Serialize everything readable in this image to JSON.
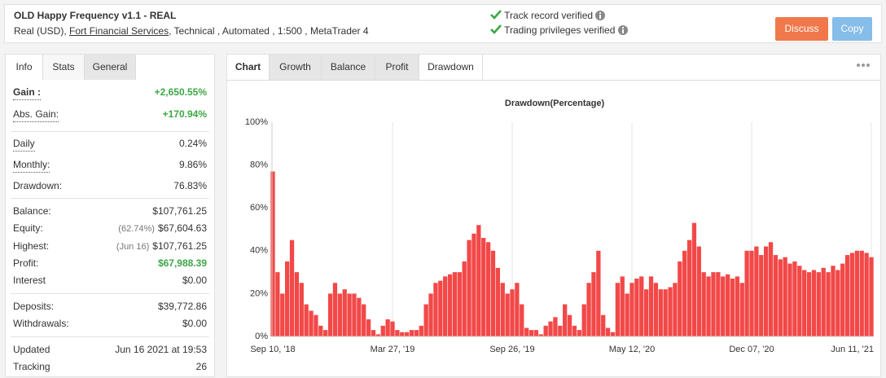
{
  "header": {
    "title": "OLD Happy Frequency v1.1 - REAL",
    "subtitle_prefix": "Real (USD),",
    "broker": "Fort Financial Services",
    "subtitle_suffix": ", Technical , Automated , 1:500 , MetaTrader 4",
    "verified": [
      "Track record verified",
      "Trading privileges verified"
    ],
    "buttons": [
      "Discuss",
      "Copy"
    ]
  },
  "left_tabs": [
    "Info",
    "Stats",
    "General"
  ],
  "stats": {
    "gain": {
      "label": "Gain :",
      "value": "+2,650.55%"
    },
    "abs_gain": {
      "label": "Abs. Gain:",
      "value": "+170.94%"
    },
    "daily": {
      "label": "Daily",
      "value": "0.24%"
    },
    "monthly": {
      "label": "Monthly:",
      "value": "9.86%"
    },
    "drawdown": {
      "label": "Drawdown:",
      "value": "76.83%"
    },
    "balance": {
      "label": "Balance:",
      "value": "$107,761.25"
    },
    "equity": {
      "label": "Equity:",
      "note": "(62.74%)",
      "value": "$67,604.63"
    },
    "highest": {
      "label": "Highest:",
      "note": "(Jun 16)",
      "value": "$107,761.25"
    },
    "profit": {
      "label": "Profit:",
      "value": "$67,988.39"
    },
    "interest": {
      "label": "Interest",
      "value": "$0.00"
    },
    "deposits": {
      "label": "Deposits:",
      "value": "$39,772.86"
    },
    "withdrawals": {
      "label": "Withdrawals:",
      "value": "$0.00"
    },
    "updated": {
      "label": "Updated",
      "value": "Jun 16 2021 at 19:53"
    },
    "tracking": {
      "label": "Tracking",
      "value": "26"
    }
  },
  "chart_tabs": [
    "Chart",
    "Growth",
    "Balance",
    "Profit",
    "Drawdown"
  ],
  "chart_data": {
    "type": "bar",
    "title": "Drawdown(Percentage)",
    "color": "#f24848",
    "xgrid": true,
    "ylim": [
      0,
      100
    ],
    "yticks": [
      {
        "value": 0,
        "label": "0%"
      },
      {
        "value": 20,
        "label": "20%"
      },
      {
        "value": 40,
        "label": "40%"
      },
      {
        "value": 60,
        "label": "60%"
      },
      {
        "value": 80,
        "label": "80%"
      },
      {
        "value": 100,
        "label": "100%"
      }
    ],
    "categories": [
      "Sep 10, '18",
      null,
      null,
      null,
      null,
      null,
      null,
      null,
      null,
      null,
      null,
      null,
      null,
      null,
      null,
      null,
      null,
      null,
      null,
      null,
      null,
      null,
      null,
      null,
      null,
      "Mar 27, '19",
      null,
      null,
      null,
      null,
      null,
      null,
      null,
      null,
      null,
      null,
      null,
      null,
      null,
      null,
      null,
      null,
      null,
      null,
      null,
      null,
      null,
      null,
      null,
      null,
      "Sep 26, '19",
      null,
      null,
      null,
      null,
      null,
      null,
      null,
      null,
      null,
      null,
      null,
      null,
      null,
      null,
      null,
      null,
      null,
      null,
      null,
      null,
      null,
      null,
      null,
      null,
      "May 12, '20",
      null,
      null,
      null,
      null,
      null,
      null,
      null,
      null,
      null,
      null,
      null,
      null,
      null,
      null,
      null,
      null,
      null,
      null,
      null,
      null,
      null,
      null,
      null,
      null,
      "Dec 07, '20",
      null,
      null,
      null,
      null,
      null,
      null,
      null,
      null,
      null,
      null,
      null,
      null,
      null,
      null,
      null,
      null,
      null,
      null,
      null,
      null,
      null,
      null,
      null,
      null,
      "Jun 11, '21"
    ],
    "values": [
      77,
      30,
      20,
      35,
      45,
      30,
      25,
      15,
      12,
      10,
      5,
      3,
      20,
      25,
      20,
      22,
      20,
      20,
      18,
      15,
      8,
      3,
      1,
      5,
      8,
      7,
      3,
      2,
      2,
      3,
      3,
      5,
      15,
      20,
      25,
      26,
      28,
      29,
      30,
      30,
      35,
      45,
      48,
      52,
      46,
      44,
      40,
      32,
      25,
      20,
      22,
      25,
      15,
      4,
      3,
      3,
      1,
      5,
      7,
      9,
      5,
      15,
      10,
      5,
      3,
      15,
      25,
      30,
      40,
      10,
      4,
      2,
      25,
      28,
      20,
      25,
      27,
      28,
      22,
      28,
      25,
      22,
      22,
      23,
      25,
      35,
      40,
      45,
      53,
      42,
      30,
      28,
      30,
      30,
      28,
      29,
      27,
      28,
      25,
      40,
      40,
      42,
      38,
      42,
      44,
      38,
      36,
      37,
      34,
      35,
      33,
      31,
      30,
      31,
      30,
      32,
      30,
      33,
      31,
      34,
      38,
      39,
      40,
      40,
      39,
      37
    ]
  }
}
